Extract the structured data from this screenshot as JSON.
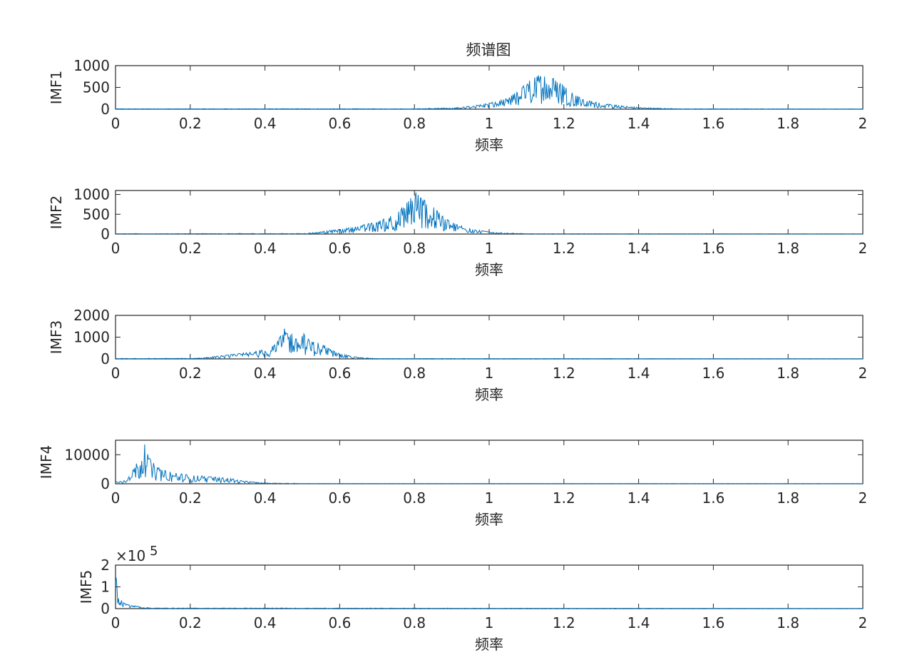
{
  "figure": {
    "title": "频谱图"
  },
  "chart_data": [
    {
      "type": "line",
      "title": "频谱图",
      "xlabel": "频率",
      "ylabel": "IMF1",
      "xlim": [
        0,
        2
      ],
      "ylim": [
        0,
        1000
      ],
      "xticks": [
        "0",
        "0.2",
        "0.4",
        "0.6",
        "0.8",
        "1",
        "1.2",
        "1.4",
        "1.6",
        "1.8",
        "2"
      ],
      "yticks": [
        "0",
        "500",
        "1000"
      ],
      "yexponent": "",
      "line_color": "#0072BD",
      "series": [
        {
          "x": [
            0,
            0.8,
            0.9,
            0.95,
            1.0,
            1.05,
            1.08,
            1.1,
            1.12,
            1.14,
            1.16,
            1.18,
            1.2,
            1.22,
            1.25,
            1.3,
            1.35,
            1.4,
            1.45,
            1.5,
            2.0
          ],
          "values": [
            10,
            10,
            30,
            70,
            140,
            250,
            450,
            600,
            750,
            800,
            760,
            700,
            550,
            400,
            230,
            140,
            80,
            45,
            25,
            10,
            5
          ]
        }
      ]
    },
    {
      "type": "line",
      "title": "",
      "xlabel": "频率",
      "ylabel": "IMF2",
      "xlim": [
        0,
        2
      ],
      "ylim": [
        0,
        1100
      ],
      "xticks": [
        "0",
        "0.2",
        "0.4",
        "0.6",
        "0.8",
        "1",
        "1.2",
        "1.4",
        "1.6",
        "1.8",
        "2"
      ],
      "yticks": [
        "0",
        "500",
        "1000"
      ],
      "yexponent": "",
      "line_color": "#0072BD",
      "series": [
        {
          "x": [
            0,
            0.5,
            0.55,
            0.6,
            0.65,
            0.7,
            0.73,
            0.76,
            0.78,
            0.8,
            0.82,
            0.84,
            0.87,
            0.9,
            0.93,
            0.96,
            1.0,
            1.05,
            1.1,
            2.0
          ],
          "values": [
            10,
            15,
            60,
            120,
            200,
            320,
            430,
            600,
            800,
            1100,
            900,
            800,
            500,
            300,
            200,
            120,
            60,
            25,
            10,
            5
          ]
        }
      ]
    },
    {
      "type": "line",
      "title": "",
      "xlabel": "频率",
      "ylabel": "IMF3",
      "xlim": [
        0,
        2
      ],
      "ylim": [
        0,
        2000
      ],
      "xticks": [
        "0",
        "0.2",
        "0.4",
        "0.6",
        "0.8",
        "1",
        "1.2",
        "1.4",
        "1.6",
        "1.8",
        "2"
      ],
      "yticks": [
        "0",
        "1000",
        "2000"
      ],
      "yexponent": "",
      "line_color": "#0072BD",
      "series": [
        {
          "x": [
            0,
            0.2,
            0.25,
            0.3,
            0.35,
            0.4,
            0.43,
            0.46,
            0.48,
            0.5,
            0.52,
            0.55,
            0.58,
            0.6,
            0.63,
            0.66,
            0.7,
            2.0
          ],
          "values": [
            20,
            30,
            80,
            180,
            300,
            450,
            700,
            1650,
            900,
            1250,
            850,
            700,
            400,
            250,
            130,
            60,
            20,
            10
          ]
        }
      ]
    },
    {
      "type": "line",
      "title": "",
      "xlabel": "频率",
      "ylabel": "IMF4",
      "xlim": [
        0,
        2
      ],
      "ylim": [
        0,
        15000
      ],
      "xticks": [
        "0",
        "0.2",
        "0.4",
        "0.6",
        "0.8",
        "1",
        "1.2",
        "1.4",
        "1.6",
        "1.8",
        "2"
      ],
      "yticks": [
        "0",
        "10000"
      ],
      "yexponent": "",
      "line_color": "#0072BD",
      "series": [
        {
          "x": [
            0,
            0.02,
            0.04,
            0.06,
            0.07,
            0.08,
            0.09,
            0.1,
            0.12,
            0.15,
            0.2,
            0.25,
            0.3,
            0.35,
            0.4,
            0.5,
            2.0
          ],
          "values": [
            1000,
            800,
            3000,
            8000,
            11000,
            15000,
            9000,
            7500,
            5000,
            4000,
            3000,
            2500,
            2000,
            900,
            300,
            100,
            50
          ]
        }
      ]
    },
    {
      "type": "line",
      "title": "",
      "xlabel": "频率",
      "ylabel": "IMF5",
      "xlim": [
        0,
        2
      ],
      "ylim": [
        0,
        2
      ],
      "xticks": [
        "0",
        "0.2",
        "0.4",
        "0.6",
        "0.8",
        "1",
        "1.2",
        "1.4",
        "1.6",
        "1.8",
        "2"
      ],
      "yticks": [
        "0",
        "1",
        "2"
      ],
      "yexponent": "5",
      "line_color": "#0072BD",
      "series": [
        {
          "x": [
            0,
            0.002,
            0.005,
            0.01,
            0.02,
            0.03,
            0.05,
            0.07,
            0.1,
            2.0
          ],
          "values": [
            2.0,
            1.6,
            0.9,
            0.5,
            0.3,
            0.2,
            0.15,
            0.08,
            0.03,
            0.01
          ]
        }
      ]
    }
  ]
}
